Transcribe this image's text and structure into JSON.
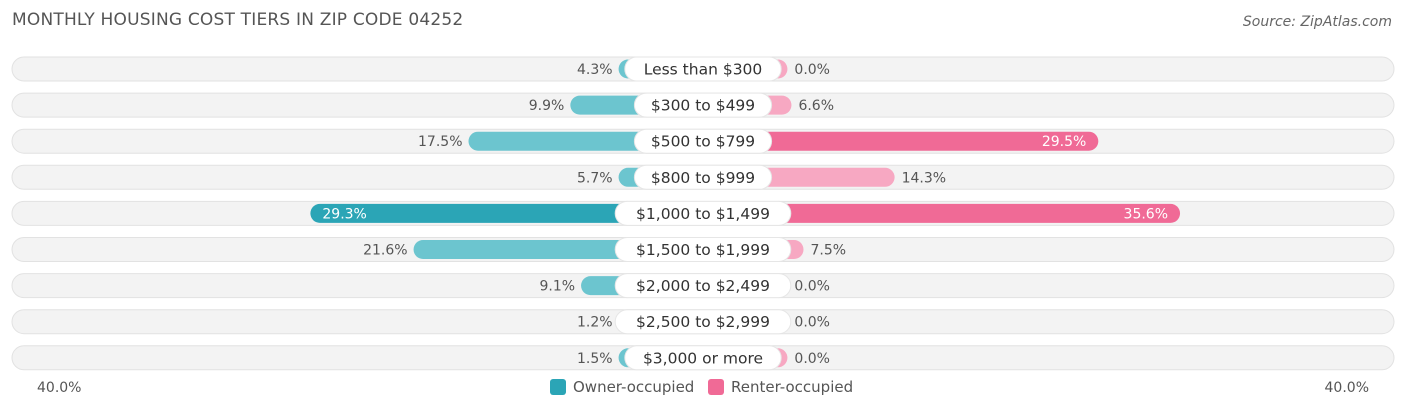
{
  "title": "MONTHLY HOUSING COST TIERS IN ZIP CODE 04252",
  "source": "Source: ZipAtlas.com",
  "colors": {
    "owner": "#6cc5cf",
    "owner_strong": "#2ba5b6",
    "renter": "#f7a8c2",
    "renter_strong": "#f06a96",
    "track": "#efefef"
  },
  "legend": {
    "owner_label": "Owner-occupied",
    "renter_label": "Renter-occupied"
  },
  "axis": {
    "left_label": "40.0%",
    "right_label": "40.0%"
  },
  "chart_data": {
    "type": "bar",
    "orientation": "horizontal-diverging",
    "categories": [
      "Less than $300",
      "$300 to $499",
      "$500 to $799",
      "$800 to $999",
      "$1,000 to $1,499",
      "$1,500 to $1,999",
      "$2,000 to $2,499",
      "$2,500 to $2,999",
      "$3,000 or more"
    ],
    "series": [
      {
        "name": "Owner-occupied",
        "values": [
          4.3,
          9.9,
          17.5,
          5.7,
          29.3,
          21.6,
          9.1,
          1.2,
          1.5
        ],
        "labels": [
          "4.3%",
          "9.9%",
          "17.5%",
          "5.7%",
          "29.3%",
          "21.6%",
          "9.1%",
          "1.2%",
          "1.5%"
        ]
      },
      {
        "name": "Renter-occupied",
        "values": [
          0.0,
          6.6,
          29.5,
          14.3,
          35.6,
          7.5,
          0.0,
          0.0,
          0.0
        ],
        "labels": [
          "0.0%",
          "6.6%",
          "29.5%",
          "14.3%",
          "35.6%",
          "7.5%",
          "0.0%",
          "0.0%",
          "0.0%"
        ]
      }
    ],
    "xlim": [
      -40,
      40
    ],
    "xlabel": "",
    "ylabel": ""
  }
}
